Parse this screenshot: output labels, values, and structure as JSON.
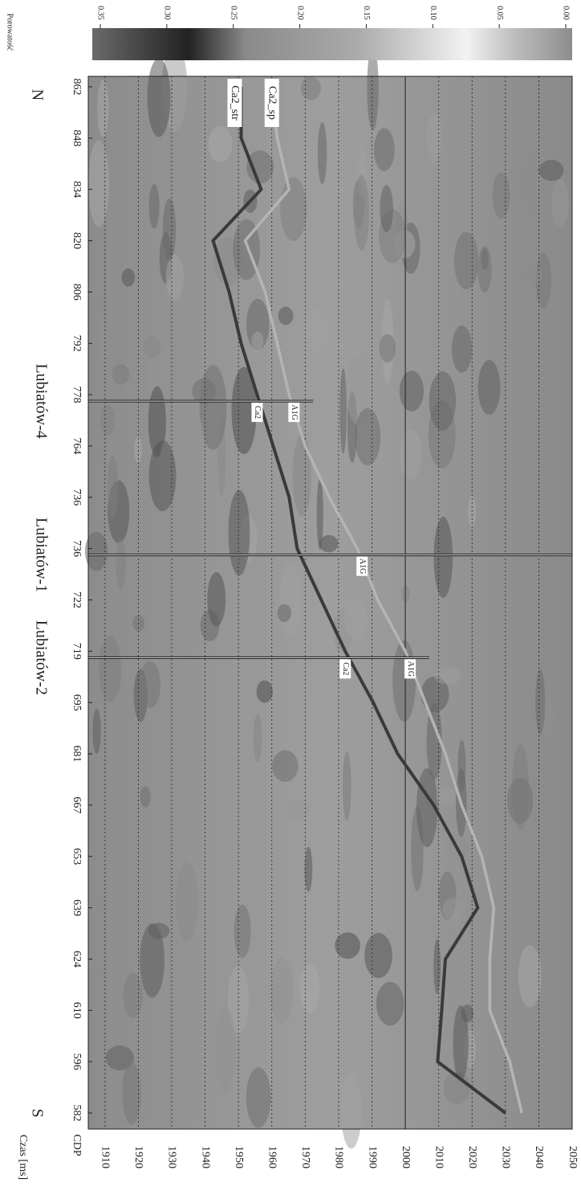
{
  "chart_data": {
    "type": "seismic-section",
    "x_label": "CDP",
    "y_label": "Czas [ms]",
    "colorbar_label": "Porowatość",
    "direction_start": "S",
    "direction_end": "N",
    "categories": [
      "582",
      "596",
      "610",
      "624",
      "639",
      "653",
      "667",
      "681",
      "695",
      "719",
      "722",
      "736",
      "736",
      "764",
      "778",
      "792",
      "806",
      "820",
      "834",
      "848",
      "862"
    ],
    "ylim": [
      1905,
      2050
    ],
    "yticks": [
      1910,
      1920,
      1930,
      1940,
      1950,
      1960,
      1970,
      1980,
      1990,
      2000,
      2010,
      2020,
      2030,
      2040,
      2050
    ],
    "reference_line": 2000,
    "series": [
      {
        "name": "Ca2_str",
        "color": "#3a3a3a",
        "values": [
          2030,
          2009.7,
          2010.9,
          2012,
          2021.7,
          2016.9,
          2008.5,
          1997.7,
          1990.4,
          1982,
          1974.8,
          1967.6,
          1965.2,
          1960.4,
          1955.6,
          1950.8,
          1947.2,
          1942.4,
          1956.8,
          1950.8,
          1950.8
        ]
      },
      {
        "name": "Ca2_sp",
        "color": "#b4b4b4",
        "values": [
          2034.9,
          2031.3,
          2025.3,
          2025.3,
          2026.5,
          2022.9,
          2016.9,
          2012,
          2006,
          2000,
          1991.7,
          1985.6,
          1977.2,
          1970,
          1965.2,
          1961.6,
          1958,
          1952,
          1965.2,
          1961.6,
          1960
        ]
      }
    ],
    "wells": [
      {
        "name": "Lubiatów-2",
        "cdp_index": 9,
        "markers": [
          "Ca2",
          "A1G"
        ]
      },
      {
        "name": "Lubiatów-1",
        "cdp_index": 11,
        "markers": [
          "A1G"
        ]
      },
      {
        "name": "Lubiatów-4",
        "cdp_index": 14,
        "markers": [
          "Ca2",
          "A1G"
        ]
      }
    ],
    "clim": [
      0.35,
      0
    ],
    "cticks": [
      0.35,
      {
        "value": 0.3,
        "label": "0.30"
      },
      0.25,
      {
        "value": 0.2,
        "label": "0.20"
      },
      0.15,
      {
        "value": 0.1,
        "label": "0.10"
      },
      0.05,
      {
        "value": 0,
        "label": "0.00"
      }
    ]
  }
}
